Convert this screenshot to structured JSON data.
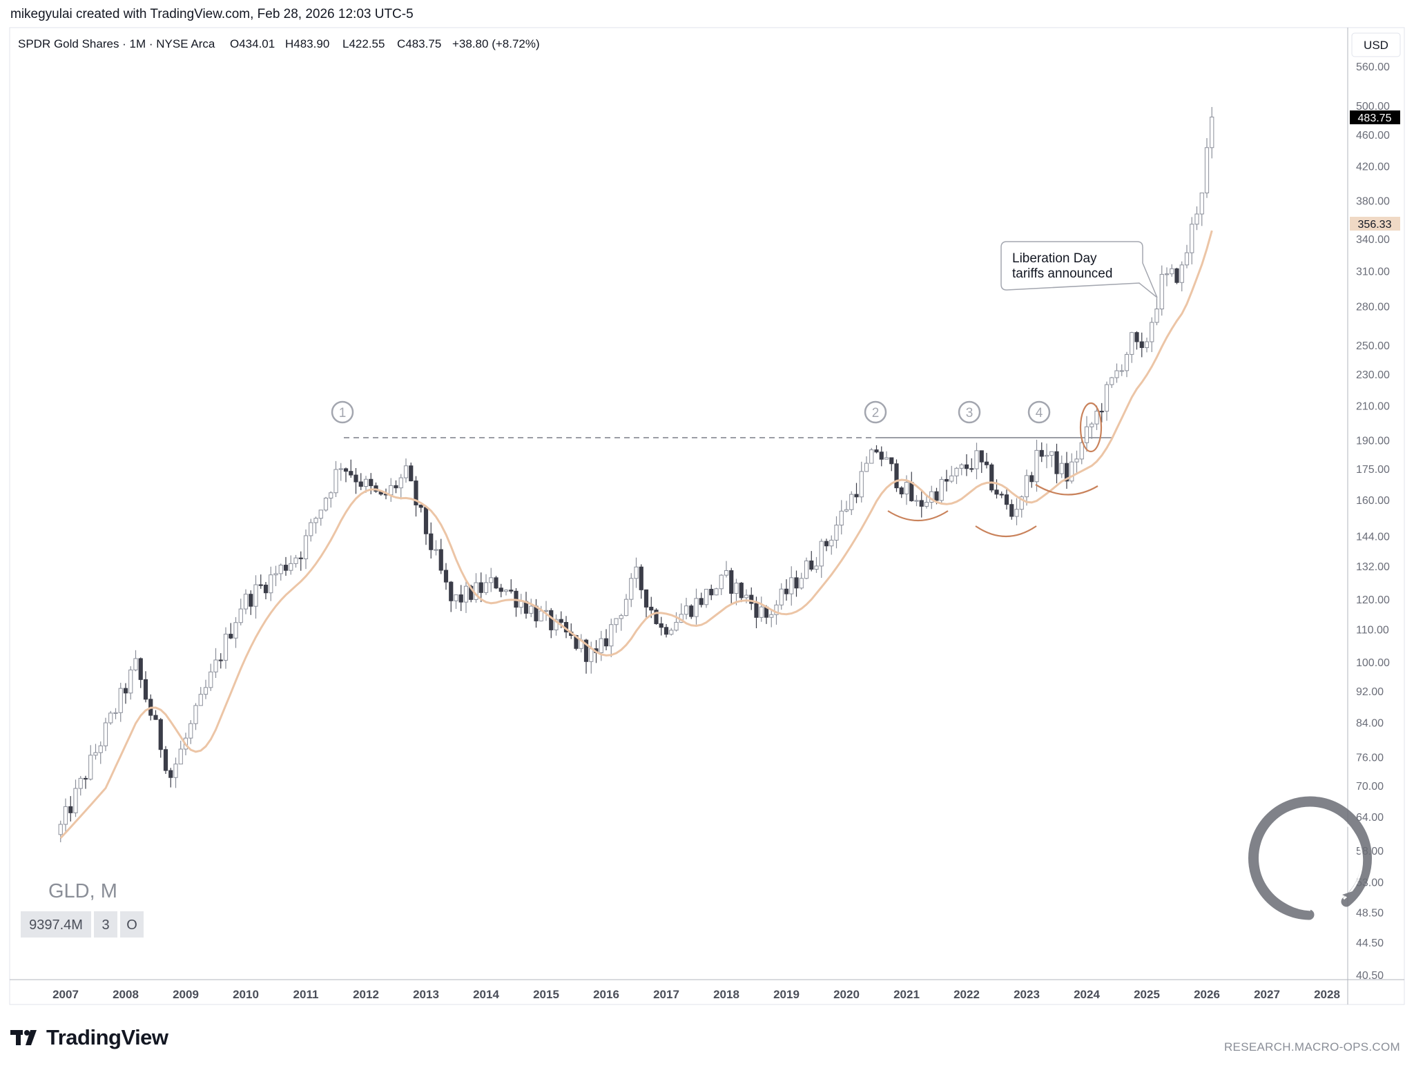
{
  "header": {
    "attribution": "mikegyulai created with TradingView.com, Feb 28, 2026 12:03 UTC-5"
  },
  "legend": {
    "symbol_title": "SPDR Gold Shares · 1M · NYSE Arca",
    "open": "O434.01",
    "high": "H483.90",
    "low": "L422.55",
    "close": "C483.75",
    "change": "+38.80 (+8.72%)"
  },
  "watermark": {
    "ticker": "GLD, M",
    "volume": "9397.4M",
    "box2": "3",
    "box3": "O"
  },
  "axis": {
    "currency": "USD",
    "price_ticks": [
      "560.00",
      "500.00",
      "460.00",
      "420.00",
      "380.00",
      "340.00",
      "310.00",
      "280.00",
      "250.00",
      "230.00",
      "210.00",
      "190.00",
      "175.00",
      "160.00",
      "144.00",
      "132.00",
      "120.00",
      "110.00",
      "100.00",
      "92.00",
      "84.00",
      "76.00",
      "70.00",
      "64.00",
      "58.00",
      "53.00",
      "48.50",
      "44.50",
      "40.50"
    ],
    "year_ticks": [
      "2007",
      "2008",
      "2009",
      "2010",
      "2011",
      "2012",
      "2013",
      "2014",
      "2015",
      "2016",
      "2017",
      "2018",
      "2019",
      "2020",
      "2021",
      "2022",
      "2023",
      "2024",
      "2025",
      "2026",
      "2027",
      "2028"
    ],
    "last_price_label": "483.75",
    "ma_price_label": "356.33"
  },
  "annotations": {
    "markers": [
      "1",
      "2",
      "3",
      "4"
    ],
    "callout_line1": "Liberation Day",
    "callout_line2": "tariffs announced"
  },
  "footer": {
    "brand": "TradingView",
    "source": "RESEARCH.MACRO-OPS.COM"
  },
  "colors": {
    "bull_fill": "#ffffff",
    "bull_stroke": "#8a8e99",
    "bear_fill": "#3b3d48",
    "ma_line": "#ecc5a6",
    "annotation": "#c9825b",
    "last_label_bg": "#000000",
    "ma_label_bg": "#f0d9c5"
  },
  "chart_data": {
    "type": "candlestick",
    "title": "SPDR Gold Shares · 1M · NYSE Arca",
    "interval": "1M",
    "y_scale": "log",
    "ylim": [
      40.5,
      600
    ],
    "xlim": [
      "2006-01",
      "2028-12"
    ],
    "last_close": 483.75,
    "moving_average_last": 356.33,
    "resistance_level": 191,
    "key_points": [
      {
        "date": "2006-12",
        "price": 62
      },
      {
        "date": "2008-03",
        "price": 99
      },
      {
        "date": "2008-10",
        "price": 72
      },
      {
        "date": "2009-12",
        "price": 118
      },
      {
        "date": "2010-12",
        "price": 138
      },
      {
        "date": "2011-08",
        "price": 178
      },
      {
        "date": "2012-04",
        "price": 160
      },
      {
        "date": "2012-09",
        "price": 172
      },
      {
        "date": "2013-06",
        "price": 119
      },
      {
        "date": "2014-03",
        "price": 126
      },
      {
        "date": "2015-11",
        "price": 101
      },
      {
        "date": "2016-07",
        "price": 128
      },
      {
        "date": "2016-12",
        "price": 110
      },
      {
        "date": "2018-01",
        "price": 127
      },
      {
        "date": "2018-09",
        "price": 114
      },
      {
        "date": "2019-09",
        "price": 141
      },
      {
        "date": "2020-07",
        "price": 185
      },
      {
        "date": "2021-03",
        "price": 157
      },
      {
        "date": "2022-03",
        "price": 180
      },
      {
        "date": "2022-10",
        "price": 153
      },
      {
        "date": "2023-04",
        "price": 185
      },
      {
        "date": "2023-09",
        "price": 171
      },
      {
        "date": "2024-03",
        "price": 205
      },
      {
        "date": "2024-10",
        "price": 253
      },
      {
        "date": "2024-12",
        "price": 242
      },
      {
        "date": "2025-04",
        "price": 300
      },
      {
        "date": "2025-08",
        "price": 310
      },
      {
        "date": "2025-12",
        "price": 395
      },
      {
        "date": "2026-02",
        "price": 483.75
      }
    ]
  }
}
